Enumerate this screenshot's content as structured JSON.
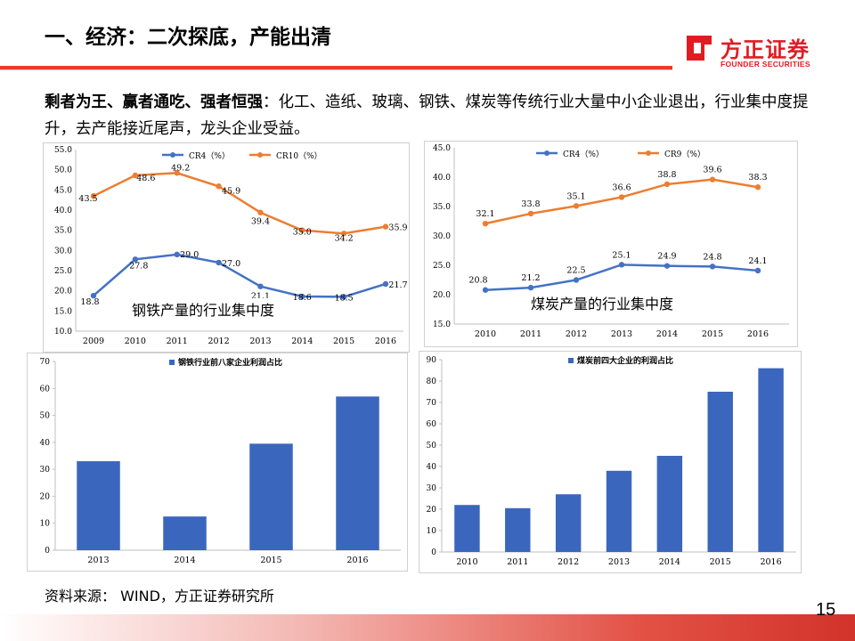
{
  "header": {
    "title": "一、经济：二次探底，产能出清",
    "logo_cn": "方正证券",
    "logo_en": "FOUNDER SECURITIES"
  },
  "paragraph": {
    "bold": "剩者为王、赢者通吃、强者恒强",
    "rest": "：化工、造纸、玻璃、钢铁、煤炭等传统行业大量中小企业退出，行业集中度提升，去产能接近尾声，龙头企业受益。"
  },
  "captions": {
    "steel_line": "钢铁产量的行业集中度",
    "coal_line": "煤炭产量的行业集中度"
  },
  "source": "资料来源：  WIND，方正证券研究所",
  "page_number": "15",
  "colors": {
    "blue": "#4472c4",
    "orange": "#ed7d31",
    "bar": "#3b66bd",
    "accent": "#e83a2f"
  },
  "chart_data": [
    {
      "id": "steel_line",
      "type": "line",
      "x": [
        "2009",
        "2010",
        "2011",
        "2012",
        "2013",
        "2014",
        "2015",
        "2016"
      ],
      "ylim": [
        10.0,
        55.0
      ],
      "yticks": [
        "10.0",
        "15.0",
        "20.0",
        "25.0",
        "30.0",
        "35.0",
        "40.0",
        "45.0",
        "50.0",
        "55.0"
      ],
      "legend_position": "top",
      "series": [
        {
          "name": "CR4（%）",
          "color": "#4472c4",
          "values": [
            18.8,
            27.8,
            29.0,
            27.0,
            21.1,
            18.6,
            18.5,
            21.7
          ],
          "labels": [
            "18.8",
            "27.8",
            "29.0",
            "27.0",
            "21.1",
            "18.6",
            "18.5",
            "21.7"
          ]
        },
        {
          "name": "CR10（%）",
          "color": "#ed7d31",
          "values": [
            43.5,
            48.6,
            49.2,
            45.9,
            39.4,
            35.0,
            34.2,
            35.9
          ],
          "labels": [
            "43.5",
            "48.6",
            "49.2",
            "45.9",
            "39.4",
            "35.0",
            "34.2",
            "35.9"
          ]
        }
      ]
    },
    {
      "id": "coal_line",
      "type": "line",
      "x": [
        "2010",
        "2011",
        "2012",
        "2013",
        "2014",
        "2015",
        "2016"
      ],
      "ylim": [
        15.0,
        45.0
      ],
      "yticks": [
        "15.0",
        "20.0",
        "25.0",
        "30.0",
        "35.0",
        "40.0",
        "45.0"
      ],
      "legend_position": "top",
      "series": [
        {
          "name": "CR4（%）",
          "color": "#4472c4",
          "values": [
            20.8,
            21.2,
            22.5,
            25.1,
            24.9,
            24.8,
            24.1
          ],
          "labels": [
            "20.8",
            "21.2",
            "22.5",
            "25.1",
            "24.9",
            "24.8",
            "24.1"
          ]
        },
        {
          "name": "CR9（%）",
          "color": "#ed7d31",
          "values": [
            32.1,
            33.8,
            35.1,
            36.6,
            38.8,
            39.6,
            38.3
          ],
          "labels": [
            "32.1",
            "33.8",
            "35.1",
            "36.6",
            "38.8",
            "39.6",
            "38.3"
          ]
        }
      ]
    },
    {
      "id": "steel_bar",
      "type": "bar",
      "categories": [
        "2013",
        "2014",
        "2015",
        "2016"
      ],
      "ylim": [
        0,
        70
      ],
      "yticks": [
        "0",
        "10",
        "20",
        "30",
        "40",
        "50",
        "60",
        "70"
      ],
      "legend_position": "top",
      "series": [
        {
          "name": "钢铁行业前八家企业利润占比",
          "color": "#3b66bd",
          "values": [
            33,
            12.5,
            39.5,
            57
          ]
        }
      ]
    },
    {
      "id": "coal_bar",
      "type": "bar",
      "categories": [
        "2010",
        "2011",
        "2012",
        "2013",
        "2014",
        "2015",
        "2016"
      ],
      "ylim": [
        0,
        90
      ],
      "yticks": [
        "0",
        "10",
        "20",
        "30",
        "40",
        "50",
        "60",
        "70",
        "80",
        "90"
      ],
      "legend_position": "top",
      "series": [
        {
          "name": "煤炭前四大企业的利润占比",
          "color": "#3b66bd",
          "values": [
            22,
            20.5,
            27,
            38,
            45,
            75,
            86
          ]
        }
      ]
    }
  ]
}
